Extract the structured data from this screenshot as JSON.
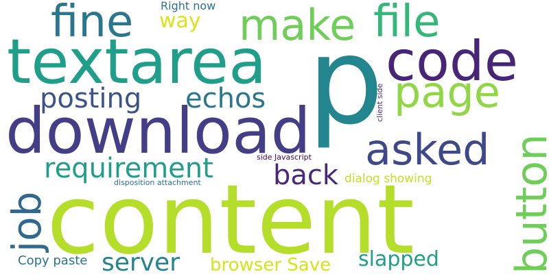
{
  "words": [
    {
      "key": "content",
      "text": "content",
      "color": "#b5de2b"
    },
    {
      "key": "p",
      "text": "p",
      "color": "#23858e"
    },
    {
      "key": "download",
      "text": "download",
      "color": "#433e85"
    },
    {
      "key": "textarea",
      "text": "textarea",
      "color": "#1f9e89"
    },
    {
      "key": "code",
      "text": "code",
      "color": "#482677"
    },
    {
      "key": "fine",
      "text": "fine",
      "color": "#2a768e"
    },
    {
      "key": "make",
      "text": "make",
      "color": "#6ece58"
    },
    {
      "key": "file",
      "text": "file",
      "color": "#35b779"
    },
    {
      "key": "page",
      "text": "page",
      "color": "#8fd744"
    },
    {
      "key": "posting",
      "text": "posting",
      "color": "#3b528b"
    },
    {
      "key": "echos",
      "text": "echos",
      "color": "#2a768e"
    },
    {
      "key": "asked",
      "text": "asked",
      "color": "#3e4989"
    },
    {
      "key": "requirement",
      "text": "requirement",
      "color": "#1f9e89"
    },
    {
      "key": "back",
      "text": "back",
      "color": "#482878"
    },
    {
      "key": "button",
      "text": "button",
      "color": "#6ece58"
    },
    {
      "key": "job",
      "text": "job",
      "color": "#31688e"
    },
    {
      "key": "server",
      "text": "server",
      "color": "#26828e"
    },
    {
      "key": "browser_save",
      "text": "browser Save",
      "color": "#d8e219"
    },
    {
      "key": "slapped",
      "text": "slapped",
      "color": "#1f9e89"
    },
    {
      "key": "copy_paste",
      "text": "Copy paste",
      "color": "#2c728e"
    },
    {
      "key": "way",
      "text": "way",
      "color": "#dde318"
    },
    {
      "key": "right_now",
      "text": "Right now",
      "color": "#2c728e"
    },
    {
      "key": "dialog_showing",
      "text": "dialog showing",
      "color": "#c2df23"
    },
    {
      "key": "side_javascript",
      "text": "side Javascript",
      "color": "#440154"
    },
    {
      "key": "disposition_attachment",
      "text": "disposition attachment",
      "color": "#2c728e"
    },
    {
      "key": "client_side",
      "text": "client side",
      "color": "#482878"
    }
  ]
}
